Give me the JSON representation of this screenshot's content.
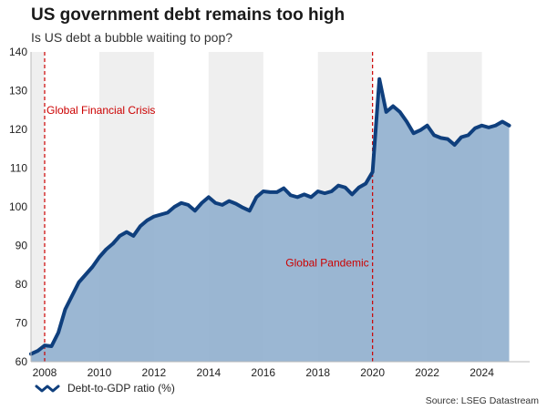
{
  "header": {
    "title": "US government debt remains too high",
    "subtitle": "Is US debt a bubble waiting to pop?"
  },
  "footer": {
    "source": "Source: LSEG Datastream"
  },
  "colors": {
    "line": "#0f3f7d",
    "area": "#93b1cf",
    "band": "#efefef",
    "annotation": "#cc0000"
  },
  "chart_data": {
    "type": "area",
    "ylim": [
      60,
      140
    ],
    "xlim": [
      2007.5,
      2025.75
    ],
    "yticks": [
      60,
      70,
      80,
      90,
      100,
      110,
      120,
      130,
      140
    ],
    "xticks": [
      2008,
      2010,
      2012,
      2014,
      2016,
      2018,
      2020,
      2022,
      2024
    ],
    "grid": false,
    "shaded_bands": [
      [
        2007.5,
        2008
      ],
      [
        2010,
        2012
      ],
      [
        2014,
        2016
      ],
      [
        2018,
        2020
      ],
      [
        2022,
        2024
      ]
    ],
    "legend": {
      "position": "bottom-left",
      "entries": [
        "Debt-to-GDP ratio (%)"
      ]
    },
    "annotations": [
      {
        "x": 2008.0,
        "label": "Global Financial Crisis",
        "label_y": 125
      },
      {
        "x": 2020.0,
        "label": "Global Pandemic",
        "label_y": 85.5
      }
    ],
    "series": [
      {
        "name": "Debt-to-GDP ratio (%)",
        "x": [
          2007.5,
          2007.75,
          2008.0,
          2008.25,
          2008.5,
          2008.75,
          2009.0,
          2009.25,
          2009.5,
          2009.75,
          2010.0,
          2010.25,
          2010.5,
          2010.75,
          2011.0,
          2011.25,
          2011.5,
          2011.75,
          2012.0,
          2012.25,
          2012.5,
          2012.75,
          2013.0,
          2013.25,
          2013.5,
          2013.75,
          2014.0,
          2014.25,
          2014.5,
          2014.75,
          2015.0,
          2015.25,
          2015.5,
          2015.75,
          2016.0,
          2016.25,
          2016.5,
          2016.75,
          2017.0,
          2017.25,
          2017.5,
          2017.75,
          2018.0,
          2018.25,
          2018.5,
          2018.75,
          2019.0,
          2019.25,
          2019.5,
          2019.75,
          2020.0,
          2020.25,
          2020.5,
          2020.75,
          2021.0,
          2021.25,
          2021.5,
          2021.75,
          2022.0,
          2022.25,
          2022.5,
          2022.75,
          2023.0,
          2023.25,
          2023.5,
          2023.75,
          2024.0,
          2024.25,
          2024.5,
          2024.75,
          2025.0
        ],
        "values": [
          62,
          62.8,
          64.2,
          64,
          67.5,
          73.5,
          77,
          80.5,
          82.5,
          84.5,
          87,
          89,
          90.5,
          92.5,
          93.5,
          92.5,
          95,
          96.5,
          97.5,
          98,
          98.5,
          100,
          101,
          100.5,
          99,
          101,
          102.5,
          101,
          100.5,
          101.5,
          100.8,
          99.8,
          99,
          102.5,
          104,
          103.8,
          103.8,
          104.8,
          103,
          102.5,
          103.2,
          102.5,
          104,
          103.5,
          104,
          105.5,
          105,
          103.2,
          105,
          106,
          109,
          133,
          124.5,
          126,
          124.5,
          122,
          119,
          119.8,
          121,
          118.5,
          117.8,
          117.5,
          116,
          118,
          118.5,
          120.3,
          121,
          120.5,
          121,
          122,
          121
        ]
      }
    ]
  }
}
